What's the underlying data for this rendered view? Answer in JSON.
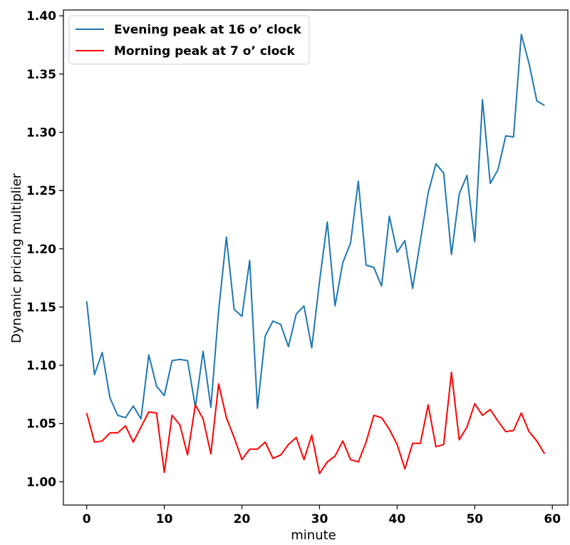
{
  "chart_data": {
    "type": "line",
    "xlabel": "minute",
    "ylabel": "Dynamic pricing multiplier",
    "xlim": [
      -3,
      62
    ],
    "ylim": [
      0.98,
      1.405
    ],
    "xticks": [
      0,
      10,
      20,
      30,
      40,
      50,
      60
    ],
    "yticks": [
      1.0,
      1.05,
      1.1,
      1.15,
      1.2,
      1.25,
      1.3,
      1.35,
      1.4
    ],
    "legend_position": "top-left",
    "grid": false,
    "x": [
      0,
      1,
      2,
      3,
      4,
      5,
      6,
      7,
      8,
      9,
      10,
      11,
      12,
      13,
      14,
      15,
      16,
      17,
      18,
      19,
      20,
      21,
      22,
      23,
      24,
      25,
      26,
      27,
      28,
      29,
      30,
      31,
      32,
      33,
      34,
      35,
      36,
      37,
      38,
      39,
      40,
      41,
      42,
      43,
      44,
      45,
      46,
      47,
      48,
      49,
      50,
      51,
      52,
      53,
      54,
      55,
      56,
      57,
      58,
      59
    ],
    "series": [
      {
        "name": "Evening peak at 16 o’ clock",
        "color": "#1f77b4",
        "values": [
          1.155,
          1.092,
          1.111,
          1.072,
          1.057,
          1.055,
          1.065,
          1.054,
          1.109,
          1.082,
          1.074,
          1.104,
          1.105,
          1.104,
          1.064,
          1.112,
          1.064,
          1.147,
          1.21,
          1.148,
          1.142,
          1.19,
          1.063,
          1.125,
          1.138,
          1.135,
          1.116,
          1.144,
          1.151,
          1.115,
          1.172,
          1.223,
          1.151,
          1.188,
          1.205,
          1.258,
          1.186,
          1.184,
          1.168,
          1.228,
          1.197,
          1.207,
          1.166,
          1.207,
          1.248,
          1.273,
          1.265,
          1.195,
          1.247,
          1.263,
          1.206,
          1.328,
          1.256,
          1.268,
          1.297,
          1.296,
          1.384,
          1.359,
          1.327,
          1.323
        ]
      },
      {
        "name": "Morning peak at 7 o’ clock",
        "color": "#ff0000",
        "values": [
          1.059,
          1.034,
          1.035,
          1.042,
          1.042,
          1.048,
          1.034,
          1.047,
          1.06,
          1.059,
          1.008,
          1.057,
          1.049,
          1.023,
          1.066,
          1.054,
          1.024,
          1.084,
          1.055,
          1.038,
          1.019,
          1.028,
          1.028,
          1.034,
          1.02,
          1.023,
          1.032,
          1.038,
          1.019,
          1.04,
          1.007,
          1.017,
          1.022,
          1.035,
          1.019,
          1.017,
          1.034,
          1.057,
          1.055,
          1.045,
          1.032,
          1.011,
          1.033,
          1.033,
          1.066,
          1.03,
          1.032,
          1.094,
          1.036,
          1.047,
          1.067,
          1.057,
          1.062,
          1.052,
          1.043,
          1.044,
          1.059,
          1.043,
          1.035,
          1.024
        ]
      }
    ]
  }
}
